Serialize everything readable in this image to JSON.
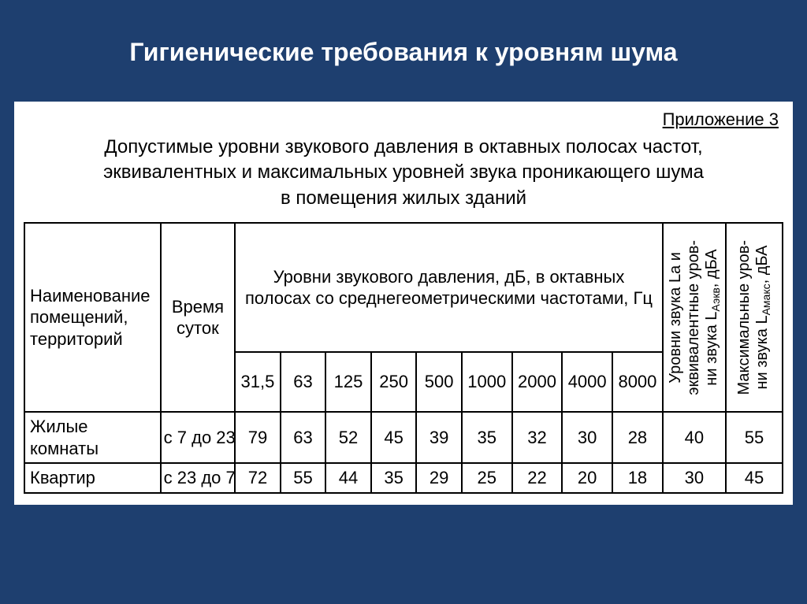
{
  "slide": {
    "title": "Гигиенические требования к уровням шума",
    "background_color": "#1e3f6f",
    "title_color": "#ffffff",
    "title_fontsize": 32
  },
  "panel": {
    "background_color": "#ffffff",
    "text_color": "#000000"
  },
  "appendix": "Приложение 3",
  "caption_lines": {
    "l1": "Допустимые уровни звукового давления в октавных полосах частот,",
    "l2": "эквивалентных и максимальных уровней звука проникающего шума",
    "l3": "в помещения жилых зданий"
  },
  "table": {
    "border_color": "#000000",
    "cell_fontsize": 22,
    "headers": {
      "name": "Наименование помещений, территорий",
      "time": "Время суток",
      "spl": "Уровни звукового давления, дБ, в октавных полосах со среднегеометрическими частотами, Гц",
      "eq_html": "Уровни звука La и<br>эквивалентные уров-<br>ни звука L<sub>Аэкв</sub>, дБА",
      "max_html": "Максимальные уров-<br>ни звука L<sub>Амакс</sub>, дБА"
    },
    "freqs": [
      "31,5",
      "63",
      "125",
      "250",
      "500",
      "1000",
      "2000",
      "4000",
      "8000"
    ],
    "rows": [
      {
        "name": "Жилые комнаты",
        "time": "с 7 до 23",
        "values": [
          "79",
          "63",
          "52",
          "45",
          "39",
          "35",
          "32",
          "30",
          "28"
        ],
        "eq": "40",
        "max": "55"
      },
      {
        "name": "Квартир",
        "time": "с 23 до 7",
        "values": [
          "72",
          "55",
          "44",
          "35",
          "29",
          "25",
          "22",
          "20",
          "18"
        ],
        "eq": "30",
        "max": "45"
      }
    ]
  }
}
